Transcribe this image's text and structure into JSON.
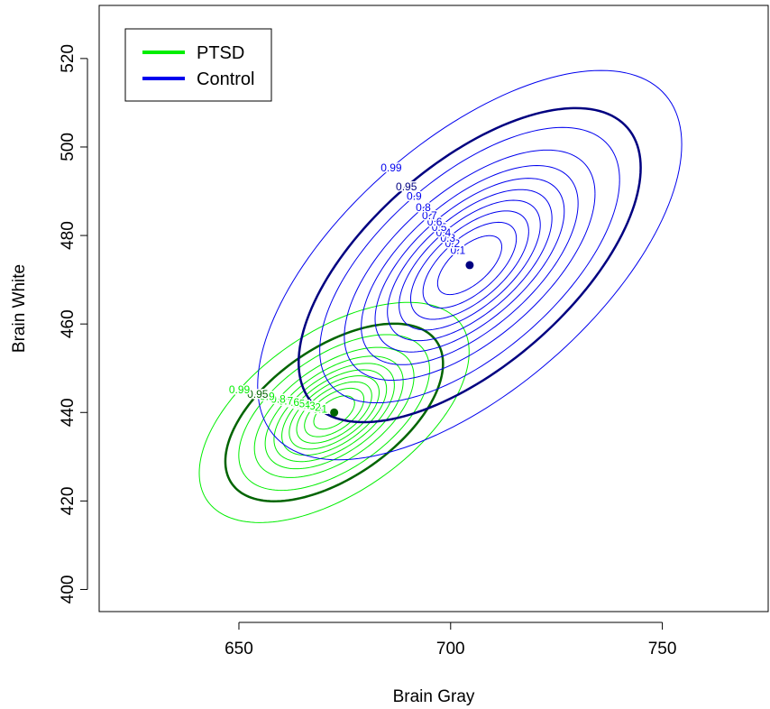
{
  "chart_data": {
    "type": "contour",
    "title": "",
    "xlabel": "Brain Gray",
    "ylabel": "Brain White",
    "xlim": [
      617,
      775
    ],
    "ylim": [
      395,
      532
    ],
    "xticks": [
      650,
      700,
      750
    ],
    "yticks": [
      400,
      420,
      440,
      460,
      480,
      500,
      520
    ],
    "grid": false,
    "legend": {
      "placement": "top-left",
      "entries": [
        {
          "label": "PTSD",
          "color": "#00ee00"
        },
        {
          "label": "Control",
          "color": "#0000ee"
        }
      ]
    },
    "series": [
      {
        "name": "PTSD",
        "mean": [
          672.5,
          440.0
        ],
        "sd": [
          10.5,
          8.2
        ],
        "rho": 0.55,
        "color_light": "#00ee00",
        "color_dark": "#006400",
        "highlight_level": 0.95,
        "levels": [
          0.1,
          0.2,
          0.3,
          0.4,
          0.5,
          0.6,
          0.7,
          0.8,
          0.9,
          0.95,
          0.99
        ],
        "labels": [
          {
            "level": 0.1,
            "text": "0.1"
          },
          {
            "level": 0.2,
            "text": "0.2"
          },
          {
            "level": 0.3,
            "text": "0.3"
          },
          {
            "level": 0.4,
            "text": "0.4"
          },
          {
            "level": 0.5,
            "text": "0.5"
          },
          {
            "level": 0.6,
            "text": "0.6"
          },
          {
            "level": 0.7,
            "text": "0.7"
          },
          {
            "level": 0.8,
            "text": "0.8"
          },
          {
            "level": 0.9,
            "text": "0.9"
          },
          {
            "level": 0.95,
            "text": "0.95"
          },
          {
            "level": 0.99,
            "text": "0.99"
          }
        ]
      },
      {
        "name": "Control",
        "mean": [
          704.5,
          473.3
        ],
        "sd": [
          16.5,
          14.5
        ],
        "rho": 0.62,
        "color_light": "#0000ee",
        "color_dark": "#000080",
        "highlight_level": 0.95,
        "levels": [
          0.1,
          0.2,
          0.3,
          0.4,
          0.5,
          0.6,
          0.7,
          0.8,
          0.9,
          0.95,
          0.99
        ],
        "labels": [
          {
            "level": 0.1,
            "text": "0.1"
          },
          {
            "level": 0.2,
            "text": "0.2"
          },
          {
            "level": 0.3,
            "text": "0.3"
          },
          {
            "level": 0.4,
            "text": "0.4"
          },
          {
            "level": 0.5,
            "text": "0.5"
          },
          {
            "level": 0.6,
            "text": "0.6"
          },
          {
            "level": 0.7,
            "text": "0.7"
          },
          {
            "level": 0.8,
            "text": "0.8"
          },
          {
            "level": 0.9,
            "text": "0.9"
          },
          {
            "level": 0.95,
            "text": "0.95"
          },
          {
            "level": 0.99,
            "text": "0.99"
          }
        ]
      }
    ]
  }
}
